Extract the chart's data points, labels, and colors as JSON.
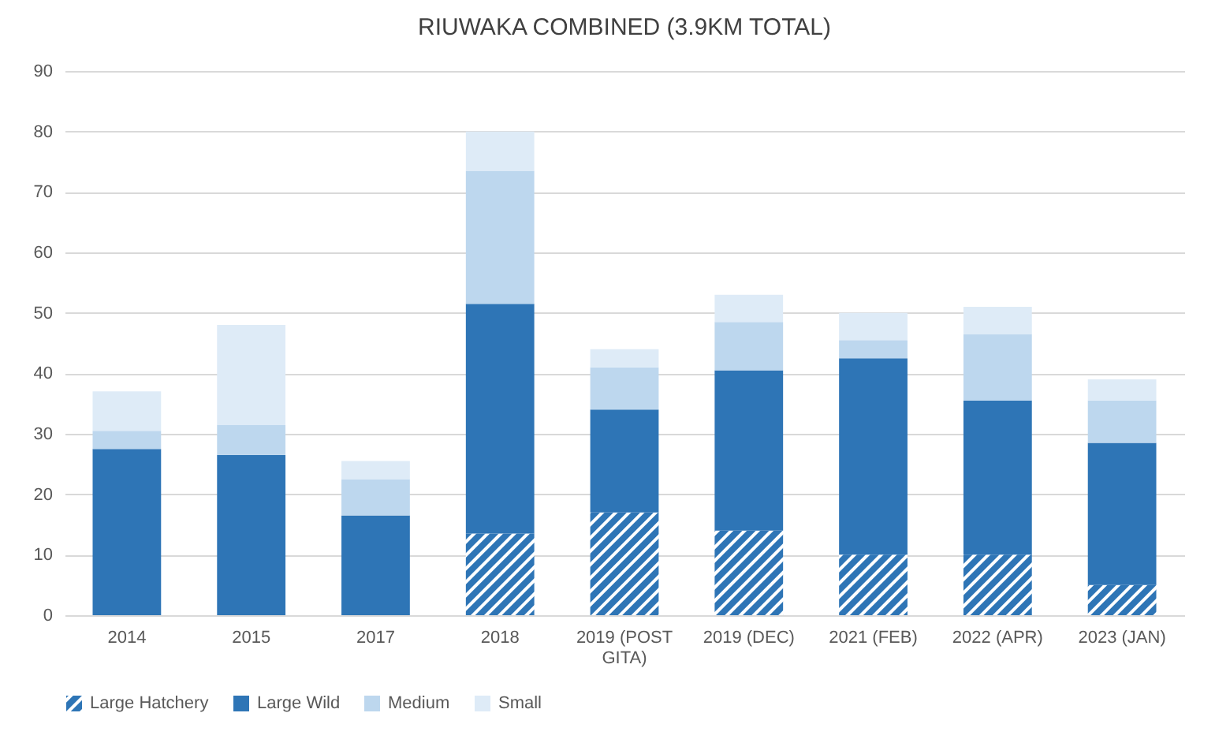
{
  "chart_data": {
    "type": "bar",
    "title": "RIUWAKA COMBINED (3.9KM TOTAL)",
    "categories": [
      "2014",
      "2015",
      "2017",
      "2018",
      "2019 (POST GITA)",
      "2019 (DEC)",
      "2021 (FEB)",
      "2022 (APR)",
      "2023 (JAN)"
    ],
    "stacked": true,
    "series": [
      {
        "name": "Large Hatchery",
        "color": "#2e75b6",
        "values": [
          0,
          0,
          0,
          13.5,
          17,
          14,
          10,
          10,
          5
        ]
      },
      {
        "name": "Large Wild",
        "color": "#2e75b6",
        "values": [
          27.5,
          26.5,
          16.5,
          38,
          17,
          26.5,
          32.5,
          25.5,
          23.5
        ]
      },
      {
        "name": "Medium",
        "color": "#bdd7ee",
        "values": [
          3,
          5,
          6,
          22,
          7,
          8,
          3,
          11,
          7
        ]
      },
      {
        "name": "Small",
        "color": "#deebf7",
        "values": [
          6.5,
          16.5,
          3,
          6.5,
          3,
          4.5,
          4.5,
          4.5,
          3.5
        ]
      }
    ],
    "ylim": [
      0,
      90
    ],
    "yticks": [
      0,
      10,
      20,
      30,
      40,
      50,
      60,
      70,
      80,
      90
    ],
    "grid": "y",
    "legend": "bottom"
  }
}
